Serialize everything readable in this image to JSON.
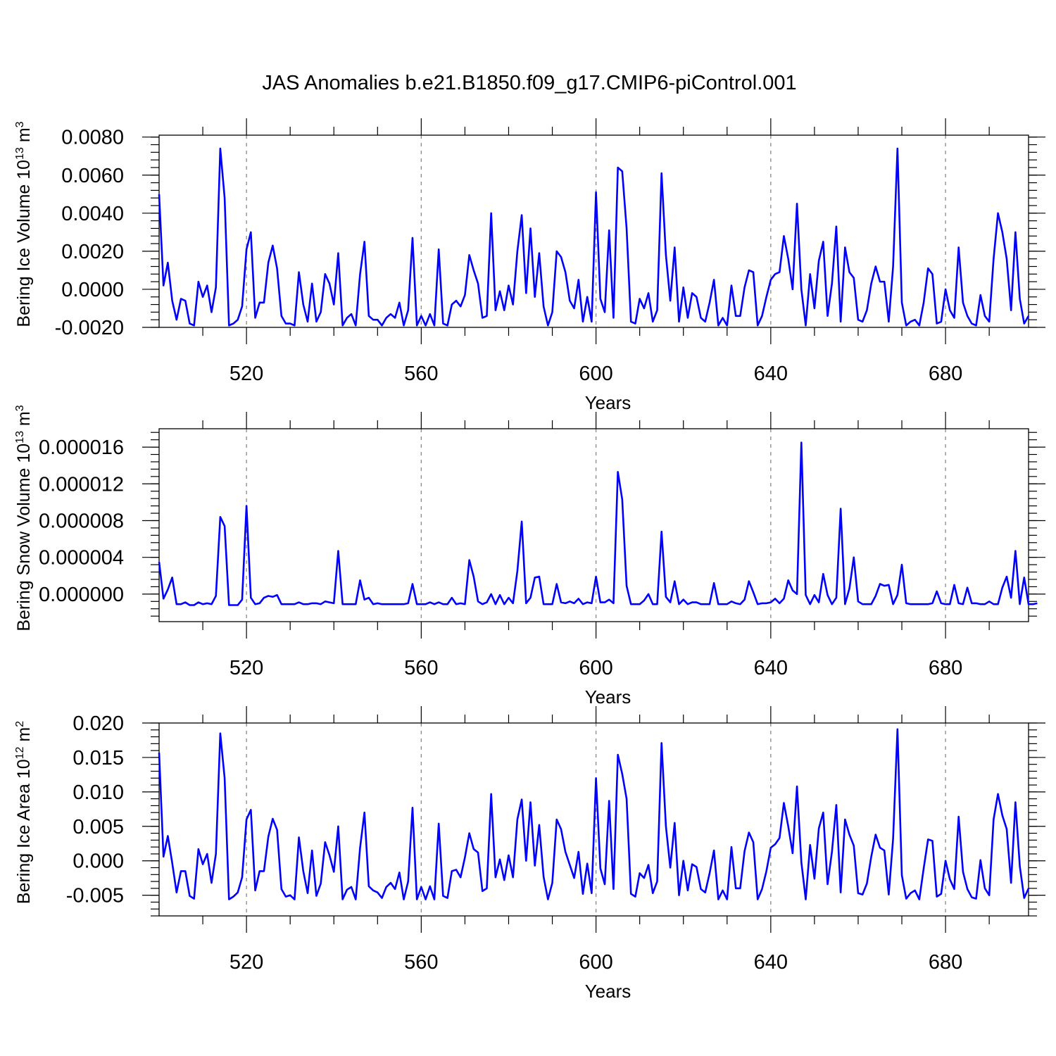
{
  "figure": {
    "title": "JAS Anomalies b.e21.B1850.f09_g17.CMIP6-piControl.001"
  },
  "chart_data": [
    {
      "type": "line",
      "xlabel": "Years",
      "ylabel": {
        "text": "Bering Ice Volume 10",
        "sup": "13",
        "unit": " m",
        "unit_sup": "3"
      },
      "xlim": [
        500,
        699
      ],
      "ylim": [
        -0.002,
        0.0081
      ],
      "xticks": [
        "520",
        "560",
        "600",
        "640",
        "680"
      ],
      "xtick_values": [
        520,
        560,
        600,
        640,
        680
      ],
      "yticks": [
        "-0.0020",
        "0.0000",
        "0.0020",
        "0.0040",
        "0.0060",
        "0.0080"
      ],
      "ytick_values": [
        -0.002,
        0.0,
        0.002,
        0.004,
        0.006,
        0.008
      ],
      "grid_x": true,
      "series": [
        {
          "color": "#0000ff",
          "x_start": 500,
          "values": [
            0.005,
            0.0002,
            0.0014,
            -0.0006,
            -0.0016,
            -0.0005,
            -0.0006,
            -0.0018,
            -0.0019,
            0.0004,
            -0.0004,
            0.0002,
            -0.0012,
            0.0001,
            0.0074,
            0.0048,
            -0.0019,
            -0.0018,
            -0.0016,
            -0.0009,
            0.0021,
            0.003,
            -0.0015,
            -0.0007,
            -0.0007,
            0.0014,
            0.0023,
            0.0011,
            -0.0014,
            -0.0018,
            -0.0018,
            -0.0019,
            0.0009,
            -0.0008,
            -0.0017,
            0.0003,
            -0.0017,
            -0.0012,
            0.0008,
            0.0003,
            -0.0008,
            0.0019,
            -0.0019,
            -0.0015,
            -0.0013,
            -0.0019,
            0.0008,
            0.0025,
            -0.0014,
            -0.0016,
            -0.0016,
            -0.0019,
            -0.0015,
            -0.0013,
            -0.0015,
            -0.0007,
            -0.0019,
            -0.0011,
            0.0027,
            -0.0019,
            -0.0014,
            -0.0019,
            -0.0013,
            -0.0019,
            0.0021,
            -0.0018,
            -0.0019,
            -0.0008,
            -0.0006,
            -0.0009,
            -0.0003,
            0.0018,
            0.001,
            0.0003,
            -0.0015,
            -0.0014,
            0.004,
            -0.0011,
            -0.0001,
            -0.0011,
            0.0002,
            -0.0008,
            0.002,
            0.0039,
            -0.0002,
            0.0032,
            -0.0004,
            0.0019,
            -0.0009,
            -0.0019,
            -0.0012,
            0.002,
            0.0017,
            0.0009,
            -0.0006,
            -0.001,
            0.0005,
            -0.0017,
            -0.0004,
            -0.0017,
            0.0051,
            -0.0005,
            -0.0012,
            0.0031,
            -0.0015,
            0.0064,
            0.0062,
            0.0032,
            -0.0017,
            -0.0018,
            -0.0005,
            -0.001,
            -0.0002,
            -0.0017,
            -0.0011,
            0.0061,
            0.0018,
            -0.0006,
            0.0022,
            -0.0017,
            0.0001,
            -0.0015,
            -0.0002,
            -0.0004,
            -0.0015,
            -0.0017,
            -0.0007,
            0.0005,
            -0.0019,
            -0.0015,
            -0.0019,
            0.0002,
            -0.0014,
            -0.0014,
            0.0001,
            0.001,
            0.0009,
            -0.0019,
            -0.0014,
            -0.0004,
            0.0005,
            0.0008,
            0.0009,
            0.0028,
            0.0016,
            0.0,
            0.0045,
            0.0,
            -0.0019,
            0.0008,
            -0.001,
            0.0015,
            0.0025,
            -0.0014,
            0.0003,
            0.0033,
            -0.0017,
            0.0022,
            0.0009,
            0.0006,
            -0.0016,
            -0.0017,
            -0.0011,
            0.0003,
            0.0012,
            0.0004,
            0.0004,
            -0.0017,
            0.0012,
            0.0074,
            -0.0007,
            -0.0019,
            -0.0017,
            -0.0016,
            -0.0019,
            -0.0007,
            0.0011,
            0.0008,
            -0.0018,
            -0.0017,
            0.0,
            -0.0011,
            -0.0015,
            0.0022,
            -0.0007,
            -0.0014,
            -0.0018,
            -0.0019,
            -0.0003,
            -0.0014,
            -0.0017,
            0.0016,
            0.004,
            0.003,
            0.0016,
            -0.0011,
            0.003,
            -0.0005,
            -0.0018,
            -0.0014
          ]
        }
      ]
    },
    {
      "type": "line",
      "xlabel": "Years",
      "ylabel": {
        "text": "Bering Snow Volume 10",
        "sup": "13",
        "unit": " m",
        "unit_sup": "3"
      },
      "xlim": [
        500,
        699
      ],
      "ylim": [
        -3e-06,
        1.8e-05
      ],
      "xticks": [
        "520",
        "560",
        "600",
        "640",
        "680"
      ],
      "xtick_values": [
        520,
        560,
        600,
        640,
        680
      ],
      "yticks": [
        "0.000000",
        "0.000004",
        "0.000008",
        "0.000012",
        "0.000016"
      ],
      "ytick_values": [
        0.0,
        4e-06,
        8e-06,
        1.2e-05,
        1.6e-05
      ],
      "grid_x": true,
      "series": [
        {
          "color": "#0000ff",
          "x_start": 500,
          "values": [
            3.5e-06,
            -5e-07,
            5e-07,
            1.8e-06,
            -1.1e-06,
            -1.1e-06,
            -9e-07,
            -1.2e-06,
            -1.2e-06,
            -9e-07,
            -1.1e-06,
            -1e-06,
            -1.1e-06,
            -2e-07,
            8.4e-06,
            7.4e-06,
            -1.2e-06,
            -1.2e-06,
            -1.2e-06,
            -6e-07,
            9.6e-06,
            -4e-07,
            -1.1e-06,
            -1e-06,
            -4e-07,
            -2e-07,
            -3e-07,
            -1e-07,
            -1.1e-06,
            -1.1e-06,
            -1.1e-06,
            -1.1e-06,
            -9e-07,
            -1.1e-06,
            -1.1e-06,
            -1e-06,
            -1e-06,
            -1.1e-06,
            -8e-07,
            -9e-07,
            -1e-06,
            4.7e-06,
            -1.1e-06,
            -1.1e-06,
            -1.1e-06,
            -1.1e-06,
            1.5e-06,
            -6e-07,
            -4e-07,
            -1.1e-06,
            -1e-06,
            -1.1e-06,
            -1.1e-06,
            -1.1e-06,
            -1.1e-06,
            -1.1e-06,
            -1.1e-06,
            -1e-06,
            1.1e-06,
            -1.1e-06,
            -1.1e-06,
            -1.1e-06,
            -9e-07,
            -1.1e-06,
            -9e-07,
            -1.1e-06,
            -1.1e-06,
            -4e-07,
            -1.1e-06,
            -1e-06,
            -1.1e-06,
            3.7e-06,
            1.9e-06,
            -8e-07,
            -1.1e-06,
            -9e-07,
            0.0,
            -1.1e-06,
            -1e-07,
            -1.1e-06,
            -4e-07,
            -1e-06,
            2.5e-06,
            7.9e-06,
            -1e-06,
            -4e-07,
            1.8e-06,
            1.9e-06,
            -1.1e-06,
            -1.1e-06,
            -1.1e-06,
            1.1e-06,
            -9e-07,
            -1e-06,
            -8e-07,
            -1e-06,
            -5e-07,
            -1.1e-06,
            -9e-07,
            -1e-06,
            1.9e-06,
            -9e-07,
            -9e-07,
            -6e-07,
            -1e-06,
            1.33e-05,
            1.03e-05,
            9e-07,
            -1.1e-06,
            -1.1e-06,
            -1.1e-06,
            -7e-07,
            0.0,
            -1.1e-06,
            -1.1e-06,
            6.8e-06,
            -3e-07,
            -9e-07,
            1.4e-06,
            -1.1e-06,
            -6e-07,
            -1.1e-06,
            -9e-07,
            -9e-07,
            -1.1e-06,
            -1.1e-06,
            -1.1e-06,
            1.2e-06,
            -1.1e-06,
            -1.1e-06,
            -1.1e-06,
            -8e-07,
            -1e-06,
            -1.1e-06,
            -6e-07,
            1.4e-06,
            2e-07,
            -1.1e-06,
            -1e-06,
            -1e-06,
            -9e-07,
            -5e-07,
            -1e-06,
            -5e-07,
            1.5e-06,
            4e-07,
            0.0,
            1.65e-05,
            -1e-07,
            -1.1e-06,
            -1e-07,
            -9e-07,
            2.2e-06,
            -1e-07,
            -1.1e-06,
            -4e-07,
            9.3e-06,
            -1.1e-06,
            6e-07,
            4e-06,
            -8e-07,
            -1.1e-06,
            -1.1e-06,
            -1.1e-06,
            -2e-07,
            1.1e-06,
            9e-07,
            1e-06,
            -1.1e-06,
            -1e-07,
            3.2e-06,
            -1e-06,
            -1.1e-06,
            -1.1e-06,
            -1.1e-06,
            -1.1e-06,
            -1.1e-06,
            -1e-06,
            3e-07,
            -1e-06,
            -1.1e-06,
            -1.1e-06,
            1e-06,
            -1e-06,
            -1.1e-06,
            7e-07,
            -1e-06,
            -1e-06,
            -1.1e-06,
            -1.1e-06,
            -8e-07,
            -1.1e-06,
            -1.1e-06,
            7e-07,
            1.9e-06,
            -4e-07,
            4.7e-06,
            -1.1e-06,
            1.8e-06,
            -1.1e-06,
            -1.1e-06,
            -1e-06
          ]
        }
      ]
    },
    {
      "type": "line",
      "xlabel": "Years",
      "ylabel": {
        "text": "Bering Ice Area 10",
        "sup": "12",
        "unit": " m",
        "unit_sup": "2"
      },
      "xlim": [
        500,
        699
      ],
      "ylim": [
        -0.008,
        0.02
      ],
      "xticks": [
        "520",
        "560",
        "600",
        "640",
        "680"
      ],
      "xtick_values": [
        520,
        560,
        600,
        640,
        680
      ],
      "yticks": [
        "-0.005",
        "0.000",
        "0.005",
        "0.010",
        "0.015",
        "0.020"
      ],
      "ytick_values": [
        -0.005,
        0.0,
        0.005,
        0.01,
        0.015,
        0.02
      ],
      "grid_x": true,
      "series": [
        {
          "color": "#0000ff",
          "x_start": 500,
          "values": [
            0.0157,
            0.0006,
            0.0036,
            -0.0003,
            -0.0046,
            -0.0015,
            -0.0015,
            -0.0051,
            -0.0055,
            0.0017,
            -0.0005,
            0.001,
            -0.0032,
            0.001,
            0.0185,
            0.012,
            -0.0056,
            -0.0052,
            -0.0046,
            -0.0024,
            0.006,
            0.0074,
            -0.0043,
            -0.0015,
            -0.0015,
            0.0035,
            0.0061,
            0.0045,
            -0.0041,
            -0.0052,
            -0.005,
            -0.0056,
            0.0034,
            -0.0015,
            -0.0047,
            0.0015,
            -0.0051,
            -0.0033,
            0.0027,
            0.0008,
            -0.0016,
            0.005,
            -0.0056,
            -0.0042,
            -0.0038,
            -0.0056,
            0.0019,
            0.007,
            -0.0037,
            -0.0043,
            -0.0046,
            -0.0054,
            -0.0038,
            -0.0032,
            -0.0041,
            -0.0017,
            -0.0056,
            -0.003,
            0.0077,
            -0.0056,
            -0.0038,
            -0.0056,
            -0.0037,
            -0.0056,
            0.0054,
            -0.0051,
            -0.0054,
            -0.0015,
            -0.0013,
            -0.0024,
            0.0005,
            0.004,
            0.0017,
            0.0012,
            -0.0044,
            -0.004,
            0.0097,
            -0.0024,
            0.0002,
            -0.0028,
            0.0008,
            -0.0024,
            0.006,
            0.0089,
            0.0,
            0.0085,
            -0.0007,
            0.0052,
            -0.0023,
            -0.0056,
            -0.0032,
            0.006,
            0.0046,
            0.0013,
            -0.0006,
            -0.0025,
            0.0013,
            -0.0048,
            -0.0004,
            -0.0047,
            0.012,
            -0.0011,
            -0.0034,
            0.0087,
            -0.0041,
            0.0154,
            0.0126,
            0.009,
            -0.0048,
            -0.0052,
            -0.0018,
            -0.0025,
            -0.0006,
            -0.0047,
            -0.003,
            0.0171,
            0.005,
            -0.001,
            0.0055,
            -0.005,
            0.0,
            -0.0043,
            -0.0005,
            -0.0009,
            -0.0041,
            -0.0046,
            -0.0018,
            0.0015,
            -0.0056,
            -0.0043,
            -0.0056,
            0.002,
            -0.004,
            -0.004,
            0.0014,
            0.0041,
            0.0027,
            -0.0056,
            -0.0041,
            -0.0015,
            0.0019,
            0.0024,
            0.0033,
            0.0084,
            0.005,
            0.0011,
            0.0108,
            -0.0002,
            -0.0056,
            0.0023,
            -0.0026,
            0.0047,
            0.007,
            -0.0034,
            0.0013,
            0.0081,
            -0.0046,
            0.006,
            0.0038,
            0.0022,
            -0.0047,
            -0.0049,
            -0.0033,
            0.0006,
            0.0038,
            0.0019,
            0.0015,
            -0.0049,
            0.0032,
            0.0191,
            -0.0021,
            -0.0055,
            -0.0047,
            -0.0043,
            -0.0056,
            -0.0011,
            0.0031,
            0.0029,
            -0.0052,
            -0.0048,
            0.0,
            -0.0027,
            -0.0041,
            0.0064,
            -0.0016,
            -0.0041,
            -0.0053,
            -0.0055,
            0.0001,
            -0.004,
            -0.005,
            0.006,
            0.0097,
            0.0066,
            0.0046,
            -0.0032,
            0.0085,
            -0.0008,
            -0.0054,
            -0.004
          ]
        }
      ]
    }
  ]
}
